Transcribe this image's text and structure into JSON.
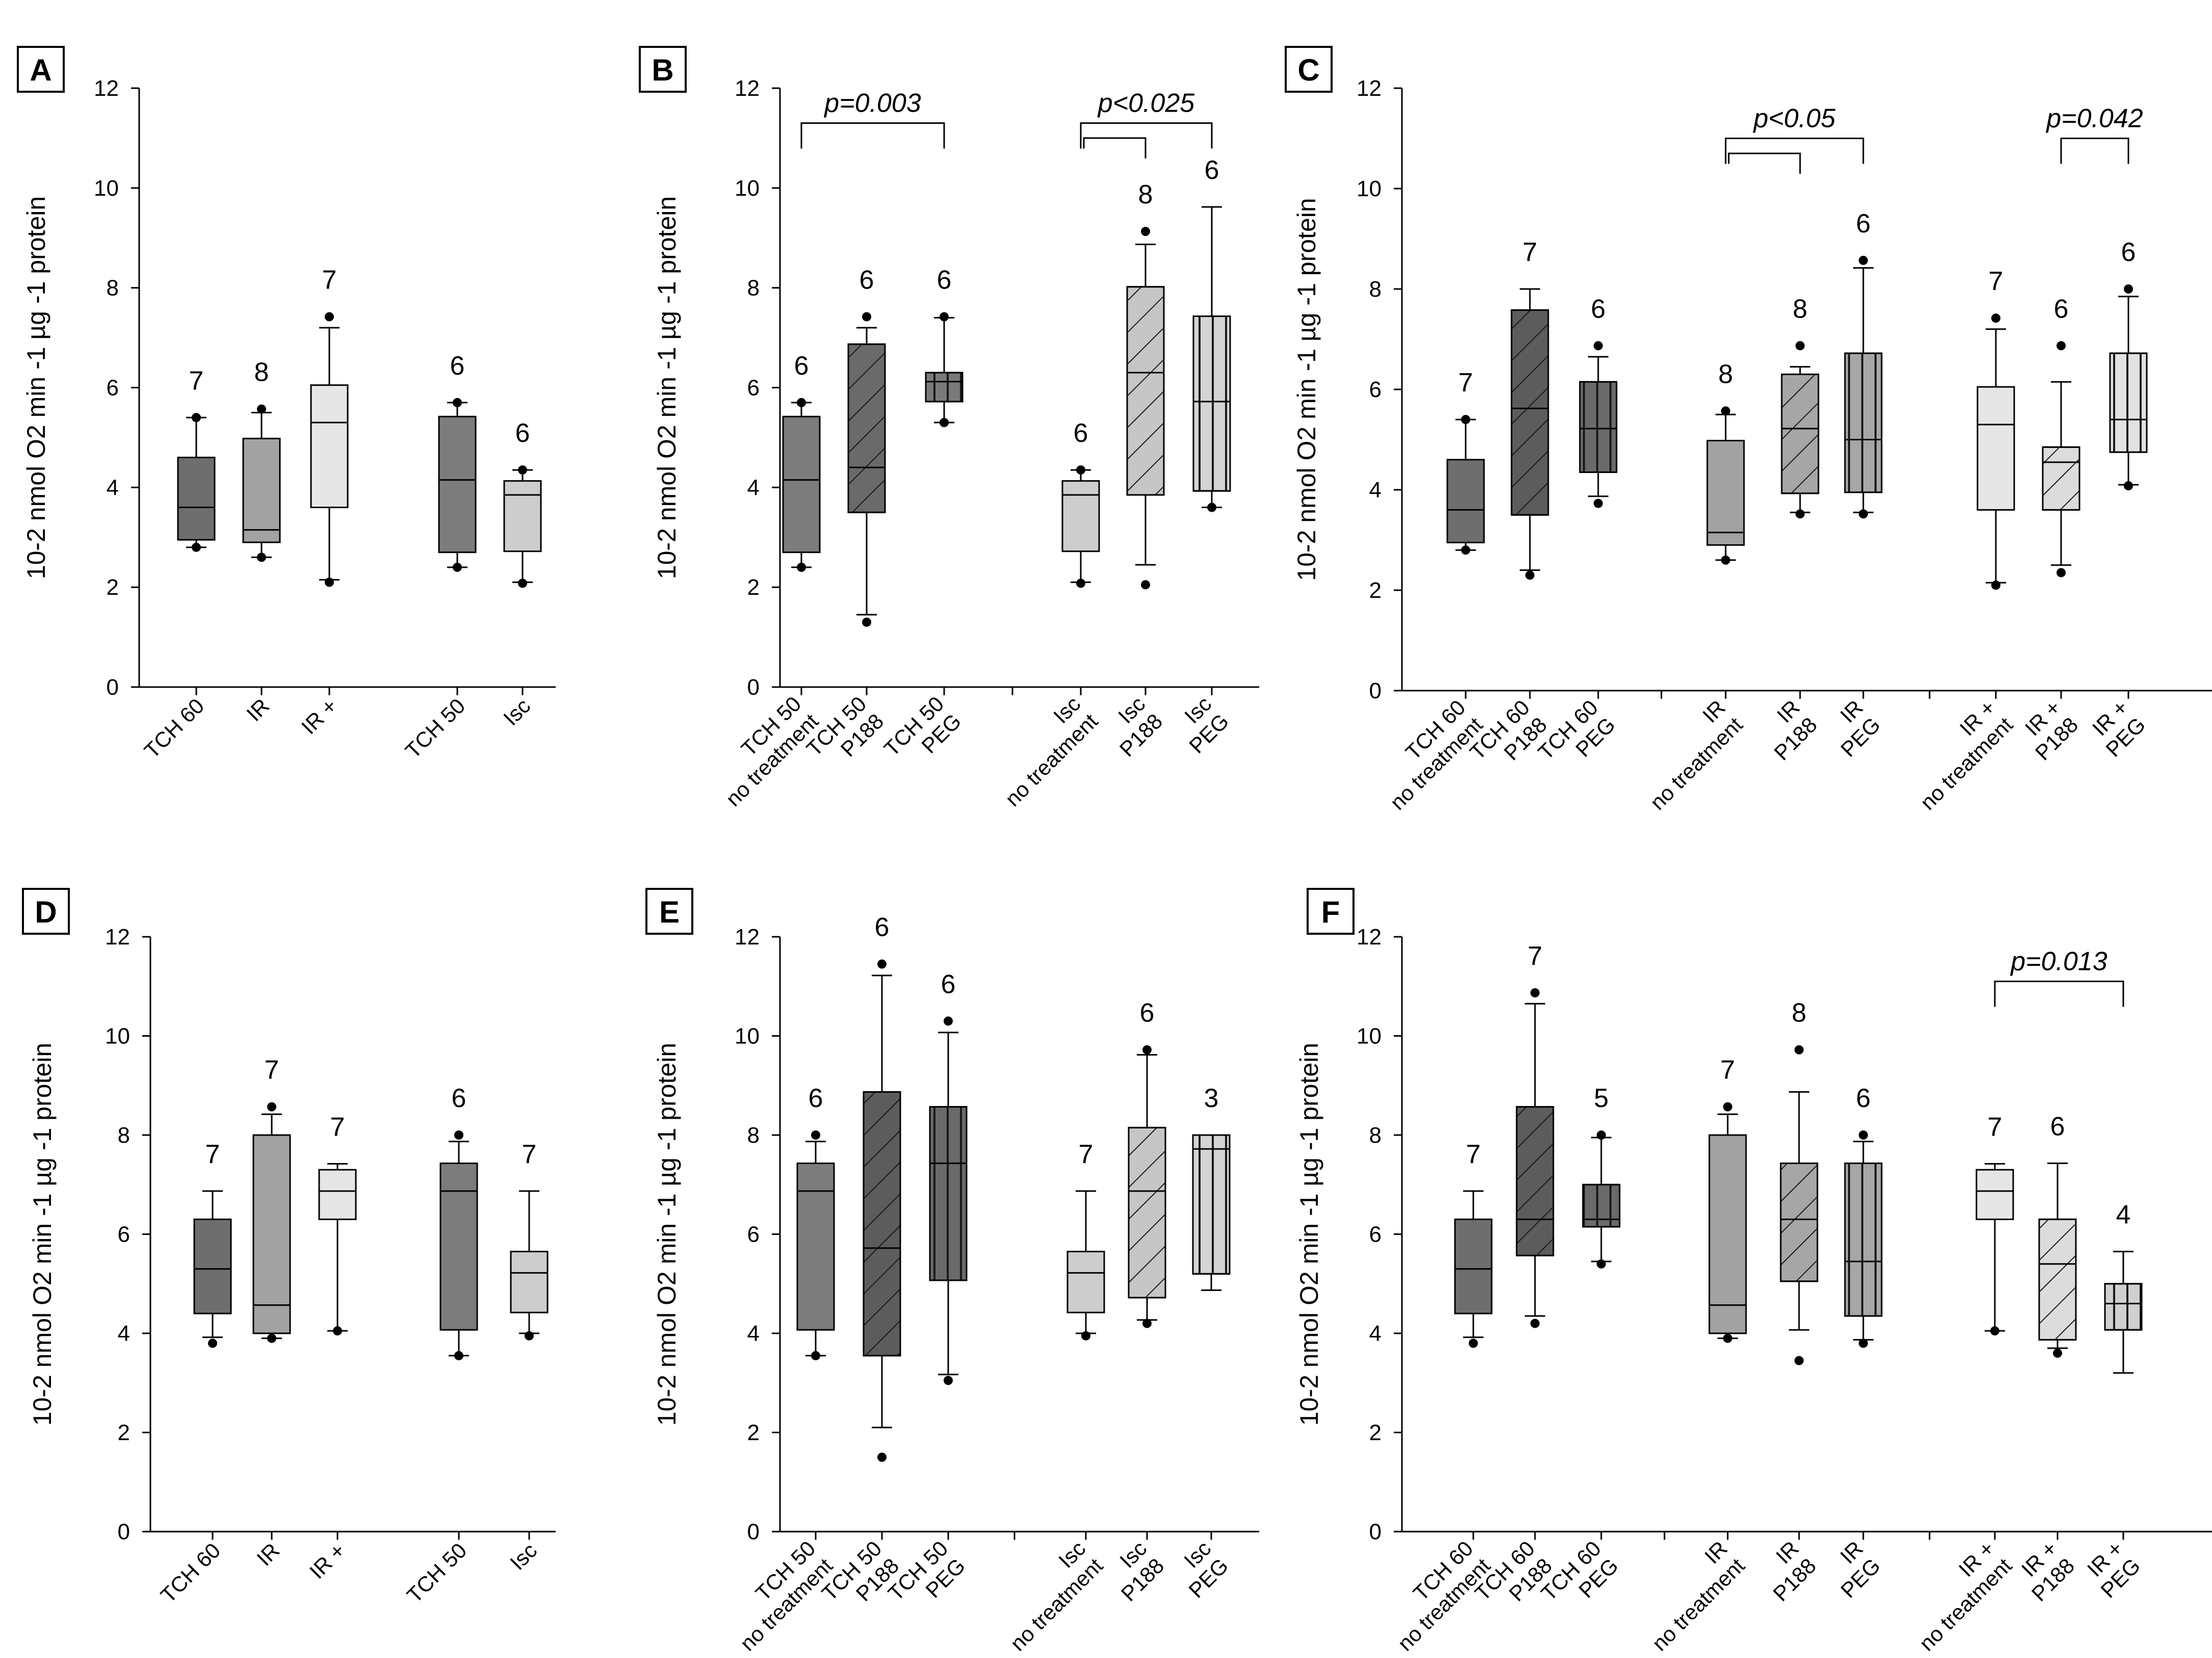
{
  "chart_data": [
    {
      "panel": "A",
      "type": "box",
      "ylabel": "10-2 nmol O2 min -1 µg -1 protein",
      "ylim": [
        0,
        12
      ],
      "yticks": [
        0,
        2,
        4,
        6,
        8,
        10,
        12
      ],
      "boxes": [
        {
          "label": [
            "TCH 60"
          ],
          "n": "7",
          "min": 2.8,
          "q1": 2.95,
          "median": 3.6,
          "q3": 4.6,
          "max": 5.4,
          "outliers": [
            5.4,
            2.8
          ],
          "fill": "#6e6e6e",
          "pattern": "none"
        },
        {
          "label": [
            "IR"
          ],
          "n": "8",
          "min": 2.6,
          "q1": 2.9,
          "median": 3.15,
          "q3": 4.98,
          "max": 5.5,
          "outliers": [
            5.57,
            2.6
          ],
          "fill": "#a2a2a2",
          "pattern": "none"
        },
        {
          "label": [
            "IR +"
          ],
          "n": "7",
          "min": 2.15,
          "q1": 3.6,
          "median": 5.3,
          "q3": 6.05,
          "max": 7.2,
          "outliers": [
            7.42,
            2.1
          ],
          "fill": "#e6e6e6",
          "pattern": "none"
        },
        {
          "label": [
            "TCH 50"
          ],
          "n": "6",
          "min": 2.4,
          "q1": 2.7,
          "median": 4.15,
          "q3": 5.42,
          "max": 5.7,
          "outliers": [
            5.7,
            2.4
          ],
          "fill": "#7c7c7c",
          "pattern": "none"
        },
        {
          "label": [
            "Isc"
          ],
          "n": "6",
          "min": 2.1,
          "q1": 2.72,
          "median": 3.85,
          "q3": 4.13,
          "max": 4.35,
          "outliers": [
            4.35,
            2.08
          ],
          "fill": "#cdcdcd",
          "pattern": "none"
        }
      ],
      "brackets": []
    },
    {
      "panel": "B",
      "type": "box",
      "ylabel": "10-2 nmol O2 min -1 µg -1 protein",
      "ylim": [
        0,
        12
      ],
      "yticks": [
        0,
        2,
        4,
        6,
        8,
        10,
        12
      ],
      "boxes": [
        {
          "label": [
            "TCH 50",
            "no treatment"
          ],
          "n": "6",
          "min": 2.4,
          "q1": 2.7,
          "median": 4.15,
          "q3": 5.42,
          "max": 5.7,
          "outliers": [
            5.7,
            2.4
          ],
          "fill": "#7c7c7c",
          "pattern": "none"
        },
        {
          "label": [
            "TCH 50",
            "P188"
          ],
          "n": "6",
          "min": 1.45,
          "q1": 3.5,
          "median": 4.4,
          "q3": 6.87,
          "max": 7.2,
          "outliers": [
            7.42,
            1.3
          ],
          "fill": "#6a6a6a",
          "pattern": "diag"
        },
        {
          "label": [
            "TCH 50",
            "PEG"
          ],
          "n": "6",
          "min": 5.3,
          "q1": 5.72,
          "median": 6.12,
          "q3": 6.3,
          "max": 7.4,
          "outliers": [
            7.42,
            5.3
          ],
          "fill": "#7a7a7a",
          "pattern": "vert"
        },
        {
          "label": [
            "Isc",
            "no treatment"
          ],
          "n": "6",
          "min": 2.1,
          "q1": 2.72,
          "median": 3.85,
          "q3": 4.13,
          "max": 4.35,
          "outliers": [
            4.35,
            2.08
          ],
          "fill": "#cdcdcd",
          "pattern": "none"
        },
        {
          "label": [
            "Isc",
            "P188"
          ],
          "n": "8",
          "min": 2.45,
          "q1": 3.85,
          "median": 6.3,
          "q3": 8.02,
          "max": 8.87,
          "outliers": [
            9.13,
            2.05
          ],
          "fill": "#c6c6c6",
          "pattern": "diag"
        },
        {
          "label": [
            "Isc",
            "PEG"
          ],
          "n": "6",
          "min": 3.6,
          "q1": 3.93,
          "median": 5.72,
          "q3": 7.43,
          "max": 9.62,
          "outliers": [
            3.6
          ],
          "fill": "#d4d4d4",
          "pattern": "vert"
        }
      ],
      "brackets": [
        {
          "text": "p=0.003",
          "from": 0,
          "to": [
            2
          ],
          "level": 11.3,
          "minor_level": null
        },
        {
          "text": "p<0.025",
          "from": 3,
          "to": [
            4,
            5
          ],
          "level": 11.3,
          "minor_level": 11.0
        }
      ]
    },
    {
      "panel": "C",
      "type": "box",
      "ylabel": "10-2 nmol O2 min -1 µg -1 protein",
      "ylim": [
        0,
        12
      ],
      "yticks": [
        0,
        2,
        4,
        6,
        8,
        10,
        12
      ],
      "boxes": [
        {
          "label": [
            "TCH 60",
            "no treatment"
          ],
          "n": "7",
          "min": 2.8,
          "q1": 2.95,
          "median": 3.6,
          "q3": 4.6,
          "max": 5.4,
          "outliers": [
            5.4,
            2.8
          ],
          "fill": "#6e6e6e",
          "pattern": "none"
        },
        {
          "label": [
            "TCH 60",
            "P188"
          ],
          "n": "7",
          "min": 2.4,
          "q1": 3.5,
          "median": 5.62,
          "q3": 7.58,
          "max": 8.0,
          "outliers": [
            2.3
          ],
          "fill": "#5c5c5c",
          "pattern": "diag"
        },
        {
          "label": [
            "TCH 60",
            "PEG"
          ],
          "n": "6",
          "min": 3.87,
          "q1": 4.35,
          "median": 5.22,
          "q3": 6.15,
          "max": 6.65,
          "outliers": [
            6.87,
            3.73
          ],
          "fill": "#6a6a6a",
          "pattern": "vert"
        },
        {
          "label": [
            "IR",
            "no treatment"
          ],
          "n": "8",
          "min": 2.6,
          "q1": 2.9,
          "median": 3.15,
          "q3": 4.98,
          "max": 5.5,
          "outliers": [
            5.57,
            2.6
          ],
          "fill": "#a2a2a2",
          "pattern": "none"
        },
        {
          "label": [
            "IR",
            "P188"
          ],
          "n": "8",
          "min": 3.55,
          "q1": 3.93,
          "median": 5.22,
          "q3": 6.3,
          "max": 6.45,
          "outliers": [
            6.87,
            3.52
          ],
          "fill": "#a6a6a6",
          "pattern": "diag"
        },
        {
          "label": [
            "IR",
            "PEG"
          ],
          "n": "6",
          "min": 3.55,
          "q1": 3.95,
          "median": 5.0,
          "q3": 6.72,
          "max": 8.42,
          "outliers": [
            8.57,
            3.52
          ],
          "fill": "#a6a6a6",
          "pattern": "vert"
        },
        {
          "label": [
            "IR +",
            "no treatment"
          ],
          "n": "7",
          "min": 2.15,
          "q1": 3.6,
          "median": 5.3,
          "q3": 6.05,
          "max": 7.2,
          "outliers": [
            7.42,
            2.1
          ],
          "fill": "#e6e6e6",
          "pattern": "none"
        },
        {
          "label": [
            "IR +",
            "P188"
          ],
          "n": "6",
          "min": 2.5,
          "q1": 3.6,
          "median": 4.55,
          "q3": 4.85,
          "max": 6.15,
          "outliers": [
            6.87,
            2.35
          ],
          "fill": "#dcdcdc",
          "pattern": "diag"
        },
        {
          "label": [
            "IR +",
            "PEG"
          ],
          "n": "6",
          "min": 4.1,
          "q1": 4.75,
          "median": 5.4,
          "q3": 6.72,
          "max": 7.85,
          "outliers": [
            8.0,
            4.08
          ],
          "fill": "#e2e2e2",
          "pattern": "vert"
        }
      ],
      "brackets": [
        {
          "text": "p<0.05",
          "from": 3,
          "to": [
            4,
            5
          ],
          "level": 11.0,
          "minor_level": 10.7
        },
        {
          "text": "p=0.042",
          "from": 7,
          "to": [
            8
          ],
          "level": 11.0,
          "minor_level": null
        }
      ]
    },
    {
      "panel": "D",
      "type": "box",
      "ylabel": "10-2 nmol O2 min -1 µg -1 protein",
      "ylim": [
        0,
        12
      ],
      "yticks": [
        0,
        2,
        4,
        6,
        8,
        10,
        12
      ],
      "boxes": [
        {
          "label": [
            "TCH 60"
          ],
          "n": "7",
          "min": 3.92,
          "q1": 4.4,
          "median": 5.3,
          "q3": 6.3,
          "max": 6.87,
          "outliers": [
            3.8
          ],
          "fill": "#6e6e6e",
          "pattern": "none"
        },
        {
          "label": [
            "IR"
          ],
          "n": "7",
          "min": 3.9,
          "q1": 4.0,
          "median": 4.57,
          "q3": 8.0,
          "max": 8.42,
          "outliers": [
            8.57,
            3.9
          ],
          "fill": "#a2a2a2",
          "pattern": "none"
        },
        {
          "label": [
            "IR +"
          ],
          "n": "7",
          "min": 4.05,
          "q1": 6.3,
          "median": 6.87,
          "q3": 7.3,
          "max": 7.42,
          "outliers": [
            4.05
          ],
          "fill": "#e6e6e6",
          "pattern": "none"
        },
        {
          "label": [
            "TCH 50"
          ],
          "n": "6",
          "min": 3.55,
          "q1": 4.07,
          "median": 6.87,
          "q3": 7.43,
          "max": 7.87,
          "outliers": [
            8.0,
            3.55
          ],
          "fill": "#7c7c7c",
          "pattern": "none"
        },
        {
          "label": [
            "Isc"
          ],
          "n": "7",
          "min": 4.0,
          "q1": 4.42,
          "median": 5.22,
          "q3": 5.65,
          "max": 6.87,
          "outliers": [
            3.95
          ],
          "fill": "#cdcdcd",
          "pattern": "none"
        }
      ],
      "brackets": []
    },
    {
      "panel": "E",
      "type": "box",
      "ylabel": "10-2 nmol O2 min -1 µg -1 protein",
      "ylim": [
        0,
        12
      ],
      "yticks": [
        0,
        2,
        4,
        6,
        8,
        10,
        12
      ],
      "boxes": [
        {
          "label": [
            "TCH 50",
            "no treatment"
          ],
          "n": "6",
          "min": 3.55,
          "q1": 4.07,
          "median": 6.87,
          "q3": 7.43,
          "max": 7.87,
          "outliers": [
            8.0,
            3.55
          ],
          "fill": "#7c7c7c",
          "pattern": "none"
        },
        {
          "label": [
            "TCH 50",
            "P188"
          ],
          "n": "6",
          "min": 2.1,
          "q1": 3.55,
          "median": 5.72,
          "q3": 8.87,
          "max": 11.22,
          "outliers": [
            11.45,
            1.5
          ],
          "fill": "#5c5c5c",
          "pattern": "diag"
        },
        {
          "label": [
            "TCH 50",
            "PEG"
          ],
          "n": "6",
          "min": 3.17,
          "q1": 5.07,
          "median": 7.43,
          "q3": 8.57,
          "max": 10.07,
          "outliers": [
            10.3,
            3.05
          ],
          "fill": "#6a6a6a",
          "pattern": "vert"
        },
        {
          "label": [
            "Isc",
            "no treatment"
          ],
          "n": "7",
          "min": 4.0,
          "q1": 4.42,
          "median": 5.22,
          "q3": 5.65,
          "max": 6.87,
          "outliers": [
            3.95
          ],
          "fill": "#cdcdcd",
          "pattern": "none"
        },
        {
          "label": [
            "Isc",
            "P188"
          ],
          "n": "6",
          "min": 4.27,
          "q1": 4.72,
          "median": 6.87,
          "q3": 8.15,
          "max": 9.62,
          "outliers": [
            9.72,
            4.2
          ],
          "fill": "#c6c6c6",
          "pattern": "diag"
        },
        {
          "label": [
            "Isc",
            "PEG"
          ],
          "n": "3",
          "min": 4.87,
          "q1": 5.2,
          "median": 7.72,
          "q3": 8.0,
          "max": 8.0,
          "outliers": [],
          "fill": "#d4d4d4",
          "pattern": "vert"
        }
      ],
      "brackets": []
    },
    {
      "panel": "F",
      "type": "box",
      "ylabel": "10-2 nmol O2 min -1 µg -1 protein",
      "ylim": [
        0,
        12
      ],
      "yticks": [
        0,
        2,
        4,
        6,
        8,
        10,
        12
      ],
      "boxes": [
        {
          "label": [
            "TCH 60",
            "no treatment"
          ],
          "n": "7",
          "min": 3.92,
          "q1": 4.4,
          "median": 5.3,
          "q3": 6.3,
          "max": 6.87,
          "outliers": [
            3.8
          ],
          "fill": "#6e6e6e",
          "pattern": "none"
        },
        {
          "label": [
            "TCH 60",
            "P188"
          ],
          "n": "7",
          "min": 4.35,
          "q1": 5.57,
          "median": 6.3,
          "q3": 8.57,
          "max": 10.65,
          "outliers": [
            10.87,
            4.2
          ],
          "fill": "#5c5c5c",
          "pattern": "diag"
        },
        {
          "label": [
            "TCH 60",
            "PEG"
          ],
          "n": "5",
          "min": 5.45,
          "q1": 6.15,
          "median": 6.3,
          "q3": 7.0,
          "max": 7.95,
          "outliers": [
            8.0,
            5.4
          ],
          "fill": "#6a6a6a",
          "pattern": "vert"
        },
        {
          "label": [
            "IR",
            "no treatment"
          ],
          "n": "7",
          "min": 3.9,
          "q1": 4.0,
          "median": 4.57,
          "q3": 8.0,
          "max": 8.42,
          "outliers": [
            8.57,
            3.9
          ],
          "fill": "#a2a2a2",
          "pattern": "none"
        },
        {
          "label": [
            "IR",
            "P188"
          ],
          "n": "8",
          "min": 4.07,
          "q1": 5.05,
          "median": 6.3,
          "q3": 7.43,
          "max": 8.87,
          "outliers": [
            9.72,
            3.45
          ],
          "fill": "#a6a6a6",
          "pattern": "diag"
        },
        {
          "label": [
            "IR",
            "PEG"
          ],
          "n": "6",
          "min": 3.87,
          "q1": 4.35,
          "median": 5.45,
          "q3": 7.43,
          "max": 7.87,
          "outliers": [
            8.0,
            3.8
          ],
          "fill": "#a6a6a6",
          "pattern": "vert"
        },
        {
          "label": [
            "IR +",
            "no treatment"
          ],
          "n": "7",
          "min": 4.05,
          "q1": 6.3,
          "median": 6.87,
          "q3": 7.3,
          "max": 7.42,
          "outliers": [
            4.05
          ],
          "fill": "#e6e6e6",
          "pattern": "none"
        },
        {
          "label": [
            "IR +",
            "P188"
          ],
          "n": "6",
          "min": 3.7,
          "q1": 3.87,
          "median": 5.4,
          "q3": 6.3,
          "max": 7.43,
          "outliers": [
            3.6
          ],
          "fill": "#dcdcdc",
          "pattern": "diag"
        },
        {
          "label": [
            "IR +",
            "PEG"
          ],
          "n": "4",
          "min": 3.2,
          "q1": 4.07,
          "median": 4.6,
          "q3": 5.0,
          "max": 5.65,
          "outliers": [],
          "fill": "#d0d0d0",
          "pattern": "vert"
        }
      ],
      "brackets": [
        {
          "text": "p=0.013",
          "from": 6,
          "to": [
            8
          ],
          "level": 11.1,
          "minor_level": null
        }
      ]
    }
  ]
}
